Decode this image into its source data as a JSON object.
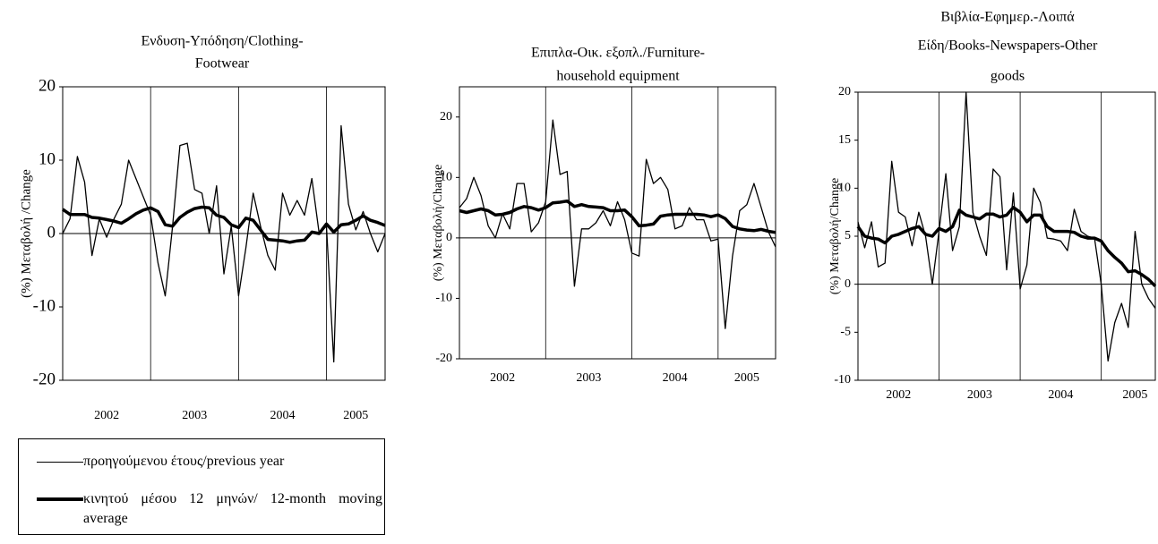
{
  "chart_data": [
    {
      "type": "line",
      "title": [
        "Ενδυση-Υπόδηση/Clothing-",
        "Footwear"
      ],
      "y_label": "(%) Μεταβολή /Change",
      "categories": [
        null,
        null,
        null,
        null,
        null,
        null,
        "2002",
        null,
        null,
        null,
        null,
        null,
        null,
        null,
        null,
        null,
        null,
        null,
        "2003",
        null,
        null,
        null,
        null,
        null,
        null,
        null,
        null,
        null,
        null,
        null,
        "2004",
        null,
        null,
        null,
        null,
        null,
        null,
        null,
        null,
        null,
        "2005",
        null,
        null,
        null,
        null
      ],
      "ylim": [
        -20,
        20
      ],
      "yticks": [
        -20,
        -10,
        0,
        10,
        20
      ],
      "series": [
        {
          "name": "προηγούμενου έτους/previous year",
          "color": "#000000",
          "width": 1.3,
          "values": [
            0,
            2,
            10.5,
            7,
            -3,
            2,
            -0.5,
            2,
            4,
            10,
            7.5,
            5,
            2.5,
            -4,
            -8.5,
            1,
            12,
            12.3,
            6,
            5.5,
            0,
            6.5,
            -5.5,
            1,
            -8.5,
            -2,
            5.5,
            1,
            -3,
            -5,
            5.5,
            2.5,
            4.5,
            2.5,
            7.5,
            0,
            1,
            -17.5,
            14.7,
            4,
            0.5,
            3,
            0,
            -2.5,
            0
          ]
        },
        {
          "name": "κινητού μέσου 12 μηνών/ 12-month moving average",
          "color": "#000000",
          "width": 3.5,
          "values": [
            3.3,
            2.6,
            2.6,
            2.6,
            2.2,
            2.1,
            1.9,
            1.7,
            1.4,
            2,
            2.7,
            3.2,
            3.5,
            3,
            1.2,
            1,
            2.2,
            2.9,
            3.4,
            3.6,
            3.5,
            2.5,
            2.2,
            1.2,
            0.8,
            2.1,
            1.8,
            0.5,
            -0.8,
            -0.9,
            -1,
            -1.2,
            -1,
            -0.9,
            0.2,
            0,
            1.3,
            0.2,
            1.2,
            1.3,
            1.8,
            2.4,
            1.8,
            1.5,
            1.1
          ]
        }
      ]
    },
    {
      "type": "line",
      "title": [
        "Επιπλα-Οικ. εξοπλ./Furniture-",
        "household equipment"
      ],
      "y_label": "(%) Μεταβολή/Change",
      "categories": [
        null,
        null,
        null,
        null,
        null,
        null,
        "2002",
        null,
        null,
        null,
        null,
        null,
        null,
        null,
        null,
        null,
        null,
        null,
        "2003",
        null,
        null,
        null,
        null,
        null,
        null,
        null,
        null,
        null,
        null,
        null,
        "2004",
        null,
        null,
        null,
        null,
        null,
        null,
        null,
        null,
        null,
        "2005",
        null,
        null,
        null,
        null
      ],
      "ylim": [
        -20,
        25
      ],
      "yticks": [
        -20,
        -10,
        0,
        10,
        20
      ],
      "series": [
        {
          "color": "#000000",
          "width": 1.3,
          "values": [
            5,
            6.5,
            10,
            7,
            2,
            0,
            4,
            1.5,
            9,
            9,
            1,
            2.5,
            6,
            19.5,
            10.5,
            11,
            -8,
            1.5,
            1.5,
            2.5,
            4.5,
            2,
            6,
            3,
            -2.5,
            -3,
            13,
            9,
            10,
            8,
            1.5,
            2,
            5,
            3,
            3,
            -0.5,
            -0.2,
            -15,
            -3,
            4.5,
            5.5,
            9,
            5,
            1,
            -1.5
          ]
        },
        {
          "color": "#000000",
          "width": 3.5,
          "values": [
            4.5,
            4.2,
            4.5,
            4.8,
            4.5,
            3.8,
            3.9,
            4.2,
            4.8,
            5.2,
            5,
            4.6,
            5,
            5.8,
            5.9,
            6.1,
            5.2,
            5.5,
            5.2,
            5.1,
            5,
            4.5,
            4.5,
            4.6,
            3.5,
            2,
            2.1,
            2.3,
            3.6,
            3.8,
            3.9,
            3.9,
            3.9,
            3.9,
            3.8,
            3.5,
            3.8,
            3.2,
            1.9,
            1.5,
            1.3,
            1.2,
            1.4,
            1.1,
            0.9
          ]
        }
      ]
    },
    {
      "type": "line",
      "title": [
        "Βιβλία-Εφημερ.-Λοιπά",
        "Είδη/Books-Newspapers-Other",
        "goods"
      ],
      "y_label": "(%) Μεταβολή/Change",
      "categories": [
        null,
        null,
        null,
        null,
        null,
        null,
        "2002",
        null,
        null,
        null,
        null,
        null,
        null,
        null,
        null,
        null,
        null,
        null,
        "2003",
        null,
        null,
        null,
        null,
        null,
        null,
        null,
        null,
        null,
        null,
        null,
        "2004",
        null,
        null,
        null,
        null,
        null,
        null,
        null,
        null,
        null,
        null,
        "2005",
        null,
        null,
        null
      ],
      "ylim": [
        -10,
        20
      ],
      "yticks": [
        -10,
        -5,
        0,
        5,
        10,
        15,
        20
      ],
      "series": [
        {
          "color": "#000000",
          "width": 1.3,
          "values": [
            6.5,
            3.8,
            6.5,
            1.8,
            2.2,
            12.8,
            7.5,
            7,
            4,
            7.5,
            5,
            0,
            5.5,
            11.5,
            3.5,
            6,
            20,
            7.5,
            5,
            3,
            12,
            11.2,
            1.5,
            9.5,
            -0.5,
            2,
            10,
            8.5,
            4.8,
            4.7,
            4.5,
            3.5,
            7.8,
            5.5,
            5,
            4.8,
            0,
            -8,
            -4,
            -2,
            -4.5,
            5.5,
            0,
            -1.5,
            -2.5
          ]
        },
        {
          "color": "#000000",
          "width": 3.5,
          "values": [
            6,
            5,
            4.8,
            4.7,
            4.3,
            5,
            5.2,
            5.5,
            5.8,
            6,
            5.2,
            5,
            5.8,
            5.5,
            6,
            7.7,
            7.2,
            7,
            6.8,
            7.3,
            7.3,
            7,
            7.2,
            8,
            7.5,
            6.5,
            7.2,
            7.2,
            6,
            5.5,
            5.5,
            5.5,
            5.4,
            5,
            4.8,
            4.8,
            4.5,
            3.5,
            2.8,
            2.2,
            1.3,
            1.4,
            1,
            0.5,
            -0.2
          ]
        }
      ]
    }
  ]
}
